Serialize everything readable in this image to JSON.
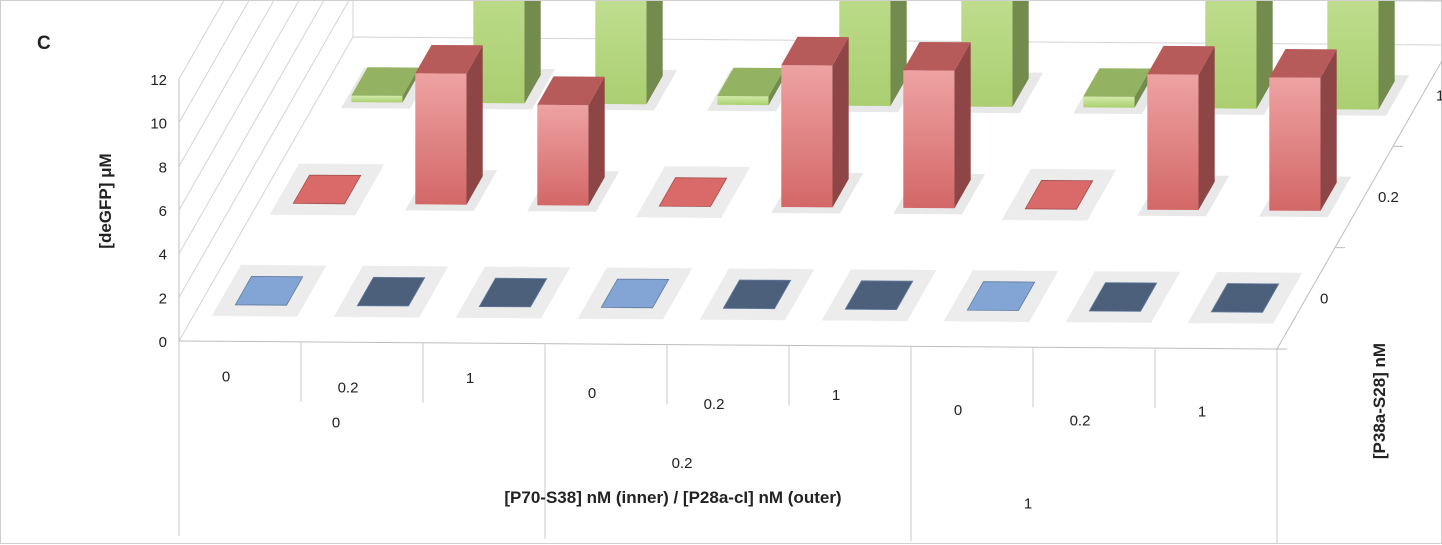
{
  "panel_label": "C",
  "chart_data": {
    "type": "bar3d",
    "ylabel": "[deGFP] μM",
    "xlabel": "[P70-S38] nM (inner) / [P28a-cI] nM (outer)",
    "zlabel": "[P38a-S28] nM",
    "y_ticks": [
      "0",
      "2",
      "4",
      "6",
      "8",
      "10",
      "12"
    ],
    "ylim": [
      0,
      12
    ],
    "x_inner_labels": [
      "0",
      "0.2",
      "1",
      "0",
      "0.2",
      "1",
      "0",
      "0.2",
      "1"
    ],
    "x_outer_labels": [
      "0",
      "0.2",
      "1"
    ],
    "depth_labels": [
      "0",
      "0.2",
      "1"
    ],
    "series": [
      {
        "name": "0",
        "color": "#8aaee0",
        "values": [
          0,
          0,
          0,
          0,
          0,
          0,
          0,
          0,
          0
        ]
      },
      {
        "name": "0.2",
        "color": "#e57070",
        "values": [
          0,
          6,
          4.6,
          0,
          6.5,
          6.3,
          0,
          6.2,
          6.1
        ]
      },
      {
        "name": "1",
        "color": "#b9e07a",
        "values": [
          0.3,
          11.3,
          8.7,
          0.4,
          11.3,
          9.5,
          0.5,
          10.2,
          9.8
        ]
      }
    ]
  }
}
